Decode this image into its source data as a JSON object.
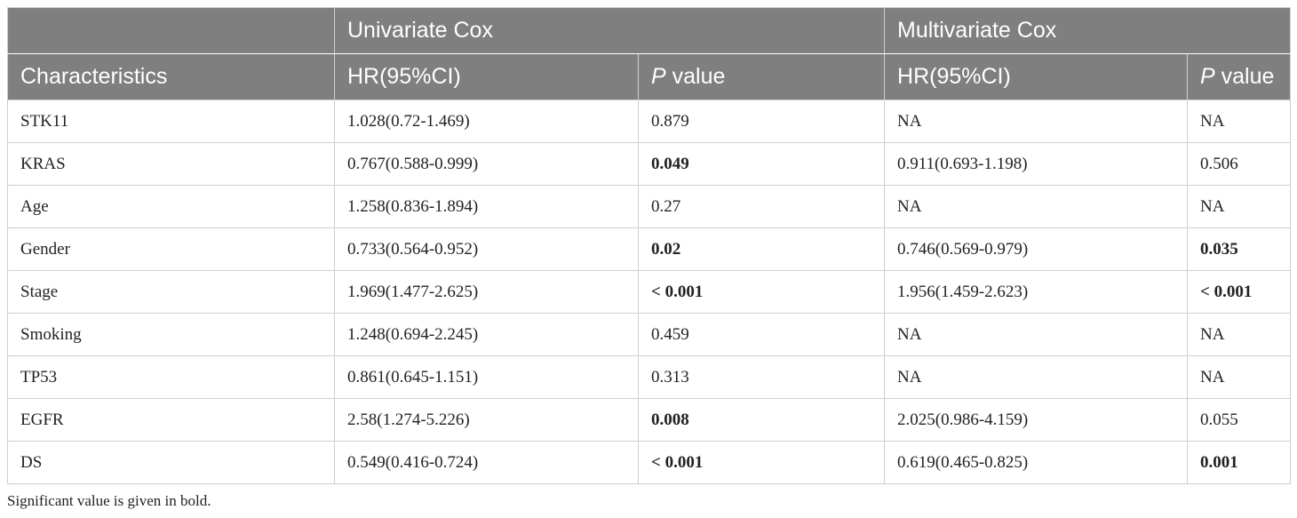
{
  "header": {
    "group_univariate": "Univariate Cox",
    "group_multivariate": "Multivariate Cox",
    "col_characteristics": "Characteristics",
    "col_hr": "HR(95%CI)",
    "col_p_italic": "P",
    "col_p_rest": " value"
  },
  "rows": [
    {
      "name": "STK11",
      "uni_hr": "1.028(0.72-1.469)",
      "uni_p": "0.879",
      "uni_p_bold": false,
      "multi_hr": "NA",
      "multi_p": "NA",
      "multi_p_bold": false
    },
    {
      "name": "KRAS",
      "uni_hr": "0.767(0.588-0.999)",
      "uni_p": "0.049",
      "uni_p_bold": true,
      "multi_hr": "0.911(0.693-1.198)",
      "multi_p": "0.506",
      "multi_p_bold": false
    },
    {
      "name": "Age",
      "uni_hr": "1.258(0.836-1.894)",
      "uni_p": "0.27",
      "uni_p_bold": false,
      "multi_hr": "NA",
      "multi_p": "NA",
      "multi_p_bold": false
    },
    {
      "name": "Gender",
      "uni_hr": "0.733(0.564-0.952)",
      "uni_p": "0.02",
      "uni_p_bold": true,
      "multi_hr": "0.746(0.569-0.979)",
      "multi_p": "0.035",
      "multi_p_bold": true
    },
    {
      "name": "Stage",
      "uni_hr": "1.969(1.477-2.625)",
      "uni_p": "< 0.001",
      "uni_p_bold": true,
      "multi_hr": "1.956(1.459-2.623)",
      "multi_p": "< 0.001",
      "multi_p_bold": true
    },
    {
      "name": "Smoking",
      "uni_hr": "1.248(0.694-2.245)",
      "uni_p": "0.459",
      "uni_p_bold": false,
      "multi_hr": "NA",
      "multi_p": "NA",
      "multi_p_bold": false
    },
    {
      "name": "TP53",
      "uni_hr": "0.861(0.645-1.151)",
      "uni_p": "0.313",
      "uni_p_bold": false,
      "multi_hr": "NA",
      "multi_p": "NA",
      "multi_p_bold": false
    },
    {
      "name": "EGFR",
      "uni_hr": "2.58(1.274-5.226)",
      "uni_p": "0.008",
      "uni_p_bold": true,
      "multi_hr": "2.025(0.986-4.159)",
      "multi_p": "0.055",
      "multi_p_bold": false
    },
    {
      "name": "DS",
      "uni_hr": "0.549(0.416-0.724)",
      "uni_p": "< 0.001",
      "uni_p_bold": true,
      "multi_hr": "0.619(0.465-0.825)",
      "multi_p": "0.001",
      "multi_p_bold": true
    }
  ],
  "footnote": "Significant value is given in bold.",
  "colors": {
    "header_bg": "#7f7f7f",
    "header_text": "#ffffff",
    "grid": "#cfcfcf"
  }
}
